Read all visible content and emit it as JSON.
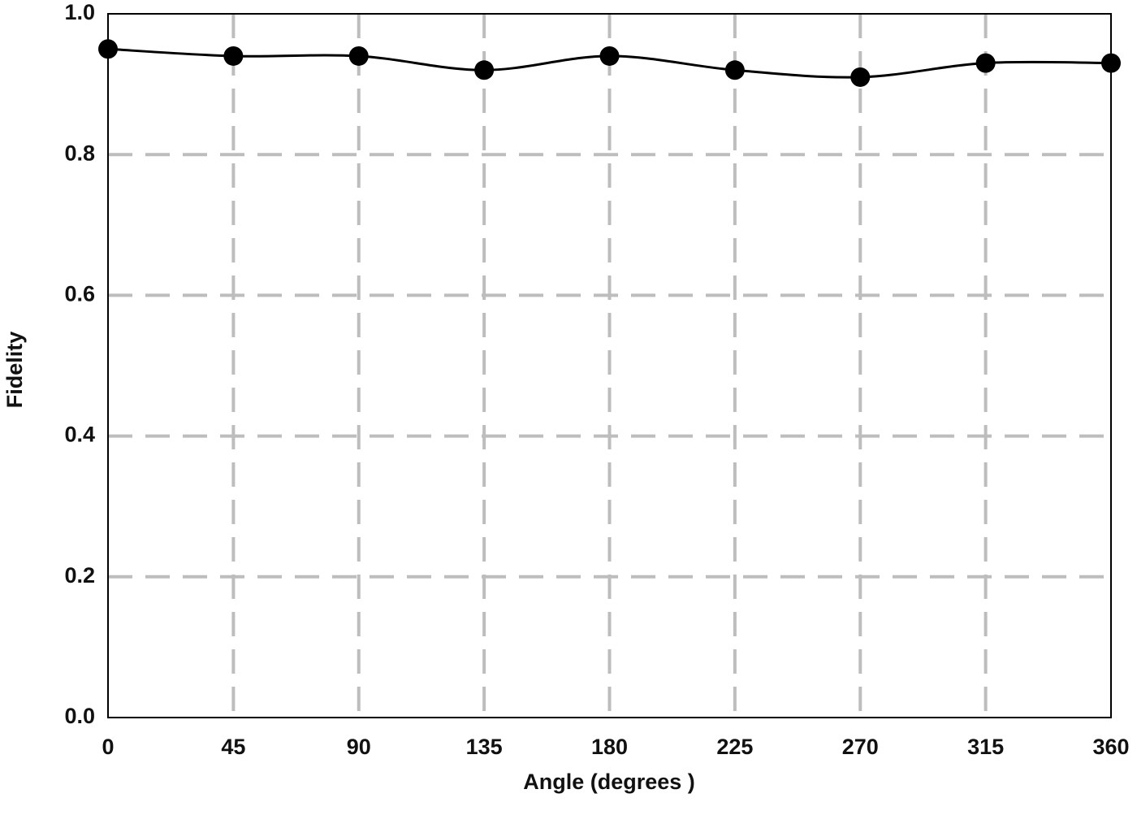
{
  "chart_data": {
    "type": "line",
    "x_label": "Angle (degrees )",
    "y_label": "Fidelity",
    "x": [
      0,
      45,
      90,
      135,
      180,
      225,
      270,
      315,
      360
    ],
    "series": [
      {
        "color": "#000000",
        "values": [
          0.95,
          0.94,
          0.94,
          0.92,
          0.94,
          0.92,
          0.91,
          0.93,
          0.93
        ]
      }
    ],
    "xlim": [
      0,
      360
    ],
    "xticks": [
      0,
      45,
      90,
      135,
      180,
      225,
      270,
      315,
      360
    ],
    "ylim": [
      0,
      1
    ],
    "yticks": [
      {
        "value": 0,
        "label": "0.0"
      },
      0.2,
      0.4,
      0.6,
      0.8,
      {
        "value": 1,
        "label": "1.0"
      }
    ],
    "grid": true
  }
}
